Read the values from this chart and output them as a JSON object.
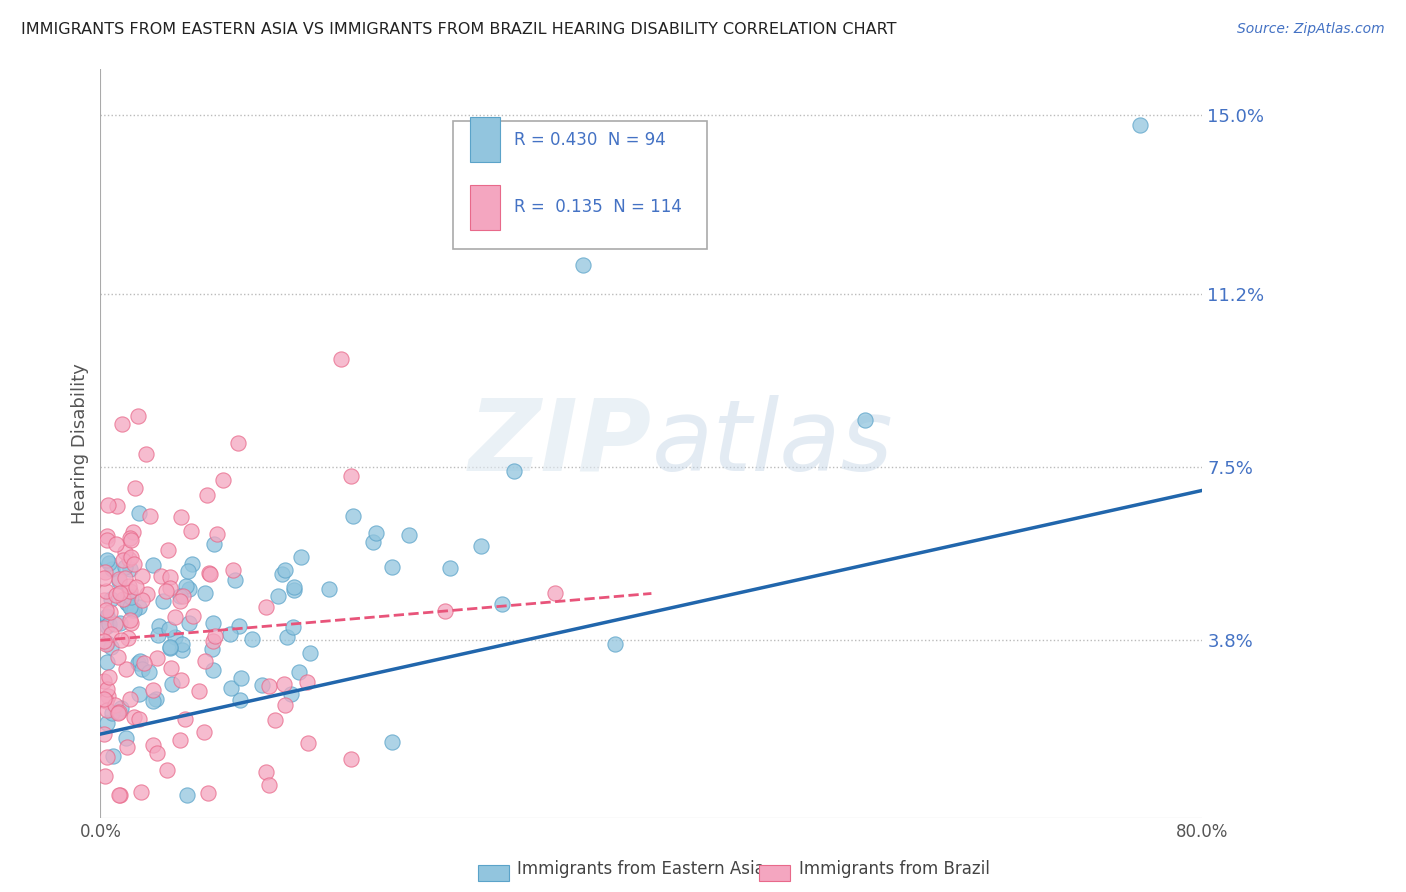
{
  "title": "IMMIGRANTS FROM EASTERN ASIA VS IMMIGRANTS FROM BRAZIL HEARING DISABILITY CORRELATION CHART",
  "source": "Source: ZipAtlas.com",
  "ylabel": "Hearing Disability",
  "x_min": 0.0,
  "x_max": 0.8,
  "y_min": 0.0,
  "y_max": 0.16,
  "y_ticks": [
    0.038,
    0.075,
    0.112,
    0.15
  ],
  "y_tick_labels": [
    "3.8%",
    "7.5%",
    "11.2%",
    "15.0%"
  ],
  "x_tick_labels": [
    "0.0%",
    "80.0%"
  ],
  "series1_label": "Immigrants from Eastern Asia",
  "series2_label": "Immigrants from Brazil",
  "series1_R": "0.430",
  "series1_N": "94",
  "series2_R": "0.135",
  "series2_N": "114",
  "series1_color": "#92c5de",
  "series2_color": "#f4a6c0",
  "series1_edge": "#5ba3c9",
  "series2_edge": "#e8698a",
  "line1_color": "#2166ac",
  "line2_color": "#e8547a",
  "background_color": "#ffffff",
  "grid_color": "#bbbbbb",
  "title_color": "#222222",
  "tick_color": "#4472c4",
  "watermark_color": "#d0dce8",
  "watermark_text_color": "#c8d8e8",
  "seed": 99
}
